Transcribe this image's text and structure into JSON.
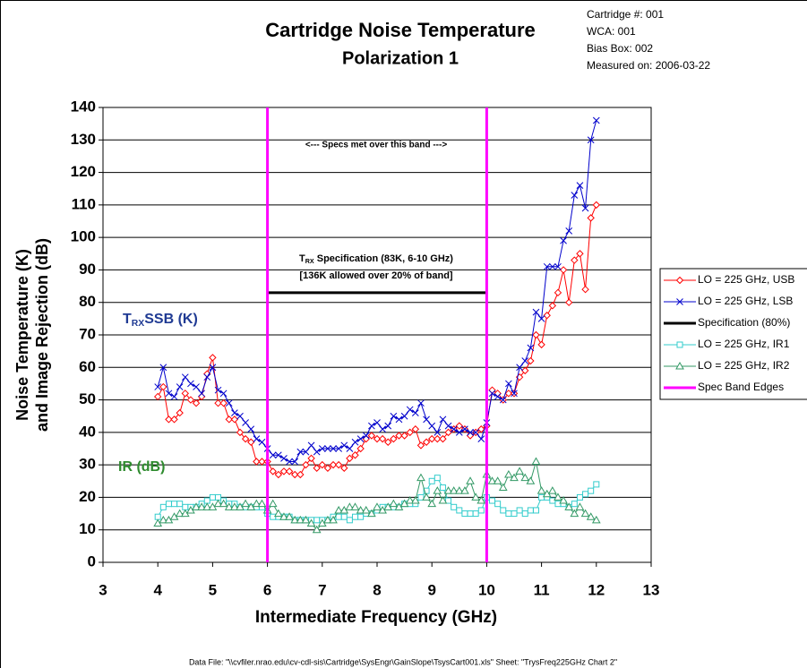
{
  "chart_data": {
    "type": "line",
    "title": "Cartridge Noise Temperature",
    "subtitle": "Polarization 1",
    "info": [
      "Cartridge #:  001",
      "WCA:  001",
      "Bias Box:  002",
      "Measured on:  2006-03-22"
    ],
    "x_label": "Intermediate  Frequency  (GHz)",
    "y_label": [
      "Noise Temperature (K)",
      "and Image Rejection (dB)"
    ],
    "annotations": {
      "band_note": "<--- Specs met over this band --->",
      "spec_note": {
        "pre": "T",
        "sub": "RX",
        "post": " Specification (83K, 6-10 GHz)"
      },
      "spec_note2": "[136K allowed over 20% of band]",
      "trx_label": {
        "pre": "T",
        "sub": "RX",
        "post": "SSB (K)"
      },
      "ir_label": "IR (dB)"
    },
    "footer": "Data File: \"\\\\cvfiler.nrao.edu\\cv-cdl-sis\\Cartridge\\SysEngr\\GainSlope\\TsysCart001.xls\"  Sheet: \"TrysFreq225GHz Chart 2\"",
    "xlim": [
      3,
      13
    ],
    "xticks": [
      3,
      4,
      5,
      6,
      7,
      8,
      9,
      10,
      11,
      12,
      13
    ],
    "ylim": [
      0,
      140
    ],
    "yticks": [
      0,
      10,
      20,
      30,
      40,
      50,
      60,
      70,
      80,
      90,
      100,
      110,
      120,
      130,
      140
    ],
    "grid": true,
    "x": [
      4.0,
      4.1,
      4.2,
      4.3,
      4.4,
      4.5,
      4.6,
      4.7,
      4.8,
      4.9,
      5.0,
      5.1,
      5.2,
      5.3,
      5.4,
      5.5,
      5.6,
      5.7,
      5.8,
      5.9,
      6.0,
      6.1,
      6.2,
      6.3,
      6.4,
      6.5,
      6.6,
      6.7,
      6.8,
      6.9,
      7.0,
      7.1,
      7.2,
      7.3,
      7.4,
      7.5,
      7.6,
      7.7,
      7.8,
      7.9,
      8.0,
      8.1,
      8.2,
      8.3,
      8.4,
      8.5,
      8.6,
      8.7,
      8.8,
      8.9,
      9.0,
      9.1,
      9.2,
      9.3,
      9.4,
      9.5,
      9.6,
      9.7,
      9.8,
      9.9,
      10.0,
      10.1,
      10.2,
      10.3,
      10.4,
      10.5,
      10.6,
      10.7,
      10.8,
      10.9,
      11.0,
      11.1,
      11.2,
      11.3,
      11.4,
      11.5,
      11.6,
      11.7,
      11.8,
      11.9,
      12.0
    ],
    "series": [
      {
        "name": "LO = 225 GHz, USB",
        "color": "#ff0000",
        "marker": "diamond",
        "values": [
          51,
          54,
          44,
          44,
          46,
          52,
          50,
          49,
          51,
          58,
          63,
          49,
          49,
          44,
          44,
          40,
          38,
          37,
          31,
          31,
          31,
          28,
          27,
          28,
          28,
          27,
          27,
          30,
          32,
          29,
          30,
          29,
          30,
          30,
          29,
          32,
          33,
          35,
          38,
          39,
          38,
          38,
          37,
          38,
          39,
          39,
          40,
          41,
          36,
          37,
          38,
          38,
          38,
          40,
          41,
          42,
          41,
          39,
          40,
          41,
          42,
          53,
          52,
          50,
          52,
          52,
          57,
          59,
          62,
          70,
          67,
          76,
          79,
          83,
          90,
          80,
          93,
          95,
          84,
          106,
          110
        ]
      },
      {
        "name": "LO = 225 GHz, LSB",
        "color": "#0000cc",
        "marker": "x",
        "values": [
          54,
          60,
          52,
          51,
          54,
          57,
          55,
          54,
          52,
          57,
          60,
          53,
          52,
          49,
          46,
          45,
          43,
          41,
          38,
          37,
          35,
          33,
          33,
          32,
          31,
          31,
          34,
          34,
          36,
          34,
          35,
          35,
          35,
          35,
          36,
          35,
          37,
          38,
          39,
          42,
          43,
          41,
          42,
          45,
          44,
          45,
          47,
          46,
          49,
          44,
          42,
          40,
          44,
          42,
          41,
          40,
          41,
          40,
          40,
          38,
          43,
          52,
          51,
          50,
          55,
          52,
          60,
          62,
          66,
          77,
          75,
          91,
          91,
          91,
          99,
          102,
          113,
          116,
          109,
          130,
          136
        ]
      },
      {
        "name": "Specification (80%)",
        "color": "#000000",
        "marker": "none",
        "x": [
          6,
          10
        ],
        "values": [
          83,
          83
        ]
      },
      {
        "name": "LO = 225 GHz, IR1",
        "color": "#33cccc",
        "marker": "square",
        "values": [
          14,
          17,
          18,
          18,
          18,
          17,
          17,
          17,
          18,
          19,
          20,
          20,
          19,
          18,
          18,
          17,
          17,
          17,
          17,
          17,
          15,
          14,
          14,
          14,
          14,
          13,
          13,
          13,
          13,
          13,
          13,
          13,
          14,
          14,
          14,
          13,
          14,
          14,
          15,
          15,
          16,
          17,
          17,
          17,
          17,
          18,
          18,
          18,
          20,
          22,
          25,
          26,
          23,
          19,
          17,
          16,
          15,
          15,
          15,
          16,
          20,
          19,
          18,
          16,
          15,
          15,
          16,
          15,
          16,
          16,
          20,
          20,
          19,
          18,
          18,
          17,
          18,
          20,
          21,
          22,
          24
        ]
      },
      {
        "name": "LO = 225 GHz, IR2",
        "color": "#339966",
        "marker": "triangle",
        "values": [
          12,
          13,
          13,
          14,
          15,
          15,
          16,
          17,
          17,
          17,
          17,
          18,
          18,
          17,
          17,
          17,
          18,
          17,
          18,
          18,
          16,
          18,
          15,
          14,
          14,
          13,
          13,
          13,
          12,
          10,
          12,
          13,
          13,
          16,
          16,
          17,
          17,
          16,
          16,
          15,
          17,
          16,
          17,
          18,
          17,
          18,
          19,
          19,
          26,
          20,
          18,
          22,
          19,
          22,
          22,
          22,
          22,
          25,
          20,
          19,
          27,
          25,
          25,
          23,
          27,
          26,
          28,
          26,
          25,
          31,
          22,
          21,
          22,
          20,
          19,
          17,
          15,
          17,
          15,
          14,
          13
        ]
      },
      {
        "name": "Spec Band Edges",
        "color": "#ff00ff",
        "marker": "vline",
        "x": [
          6,
          10
        ]
      }
    ]
  }
}
